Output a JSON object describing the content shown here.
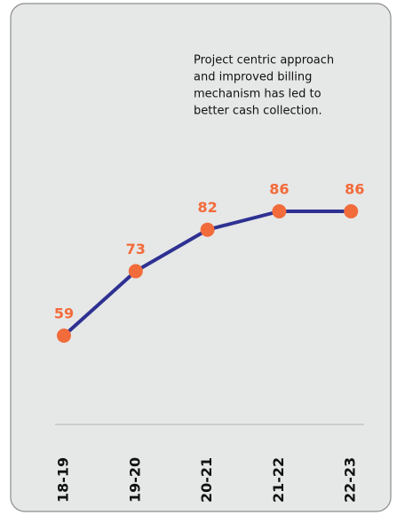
{
  "chart_data": {
    "type": "line",
    "annotation": [
      "Project centric approach",
      "and improved billing",
      "mechanism has led to",
      "better cash collection."
    ],
    "categories": [
      "18-19",
      "19-20",
      "20-21",
      "21-22",
      "22-23"
    ],
    "series": [
      {
        "color": "#2e3192",
        "marker_color": "#f26b3a",
        "values": [
          59,
          73,
          82,
          86,
          86
        ]
      }
    ]
  }
}
